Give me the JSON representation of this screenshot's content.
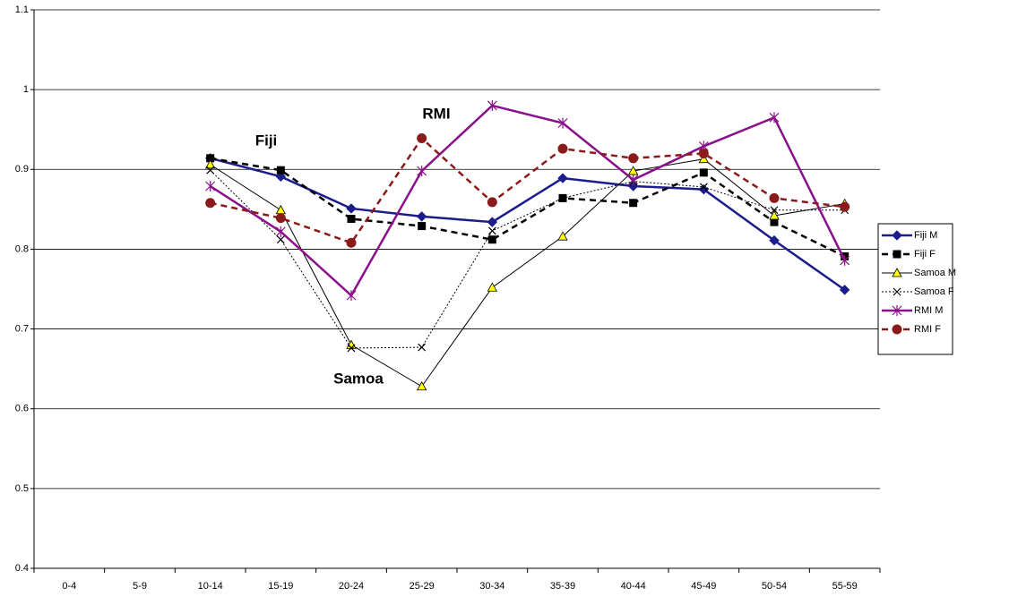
{
  "chart_data": {
    "type": "line",
    "categories": [
      "0-4",
      "5-9",
      "10-14",
      "15-19",
      "20-24",
      "25-29",
      "30-34",
      "35-39",
      "40-44",
      "45-49",
      "50-54",
      "55-59"
    ],
    "series": [
      {
        "name": "Fiji M",
        "color": "#1c1c8c",
        "values": [
          null,
          null,
          0.914,
          0.891,
          0.851,
          0.841,
          0.834,
          0.889,
          0.879,
          0.875,
          0.811,
          0.749
        ]
      },
      {
        "name": "Fiji F",
        "color": "#000000",
        "values": [
          null,
          null,
          0.914,
          0.899,
          0.838,
          0.829,
          0.812,
          0.864,
          0.858,
          0.896,
          0.834,
          0.791
        ]
      },
      {
        "name": "Samoa M",
        "color": "#000000",
        "values": [
          null,
          null,
          0.906,
          0.849,
          0.68,
          0.628,
          0.752,
          0.816,
          0.898,
          0.913,
          0.842,
          0.857
        ]
      },
      {
        "name": "Samoa F",
        "color": "#000000",
        "values": [
          null,
          null,
          0.899,
          0.812,
          0.676,
          0.677,
          0.823,
          0.864,
          0.885,
          0.878,
          0.849,
          0.849
        ]
      },
      {
        "name": "RMI M",
        "color": "#8b108b",
        "values": [
          null,
          null,
          0.879,
          0.822,
          0.742,
          0.898,
          0.98,
          0.958,
          0.887,
          0.929,
          0.965,
          0.786
        ]
      },
      {
        "name": "RMI F",
        "color": "#8b1a1a",
        "values": [
          null,
          null,
          0.858,
          0.839,
          0.808,
          0.939,
          0.859,
          0.926,
          0.914,
          0.92,
          0.864,
          0.853
        ]
      }
    ],
    "annotations": [
      "Fiji",
      "RMI",
      "Samoa"
    ],
    "ylim": [
      0.4,
      1.1
    ],
    "yticks": [
      0.4,
      0.5,
      0.6,
      0.7,
      0.8,
      0.9,
      1,
      1.1
    ],
    "grid": true
  }
}
